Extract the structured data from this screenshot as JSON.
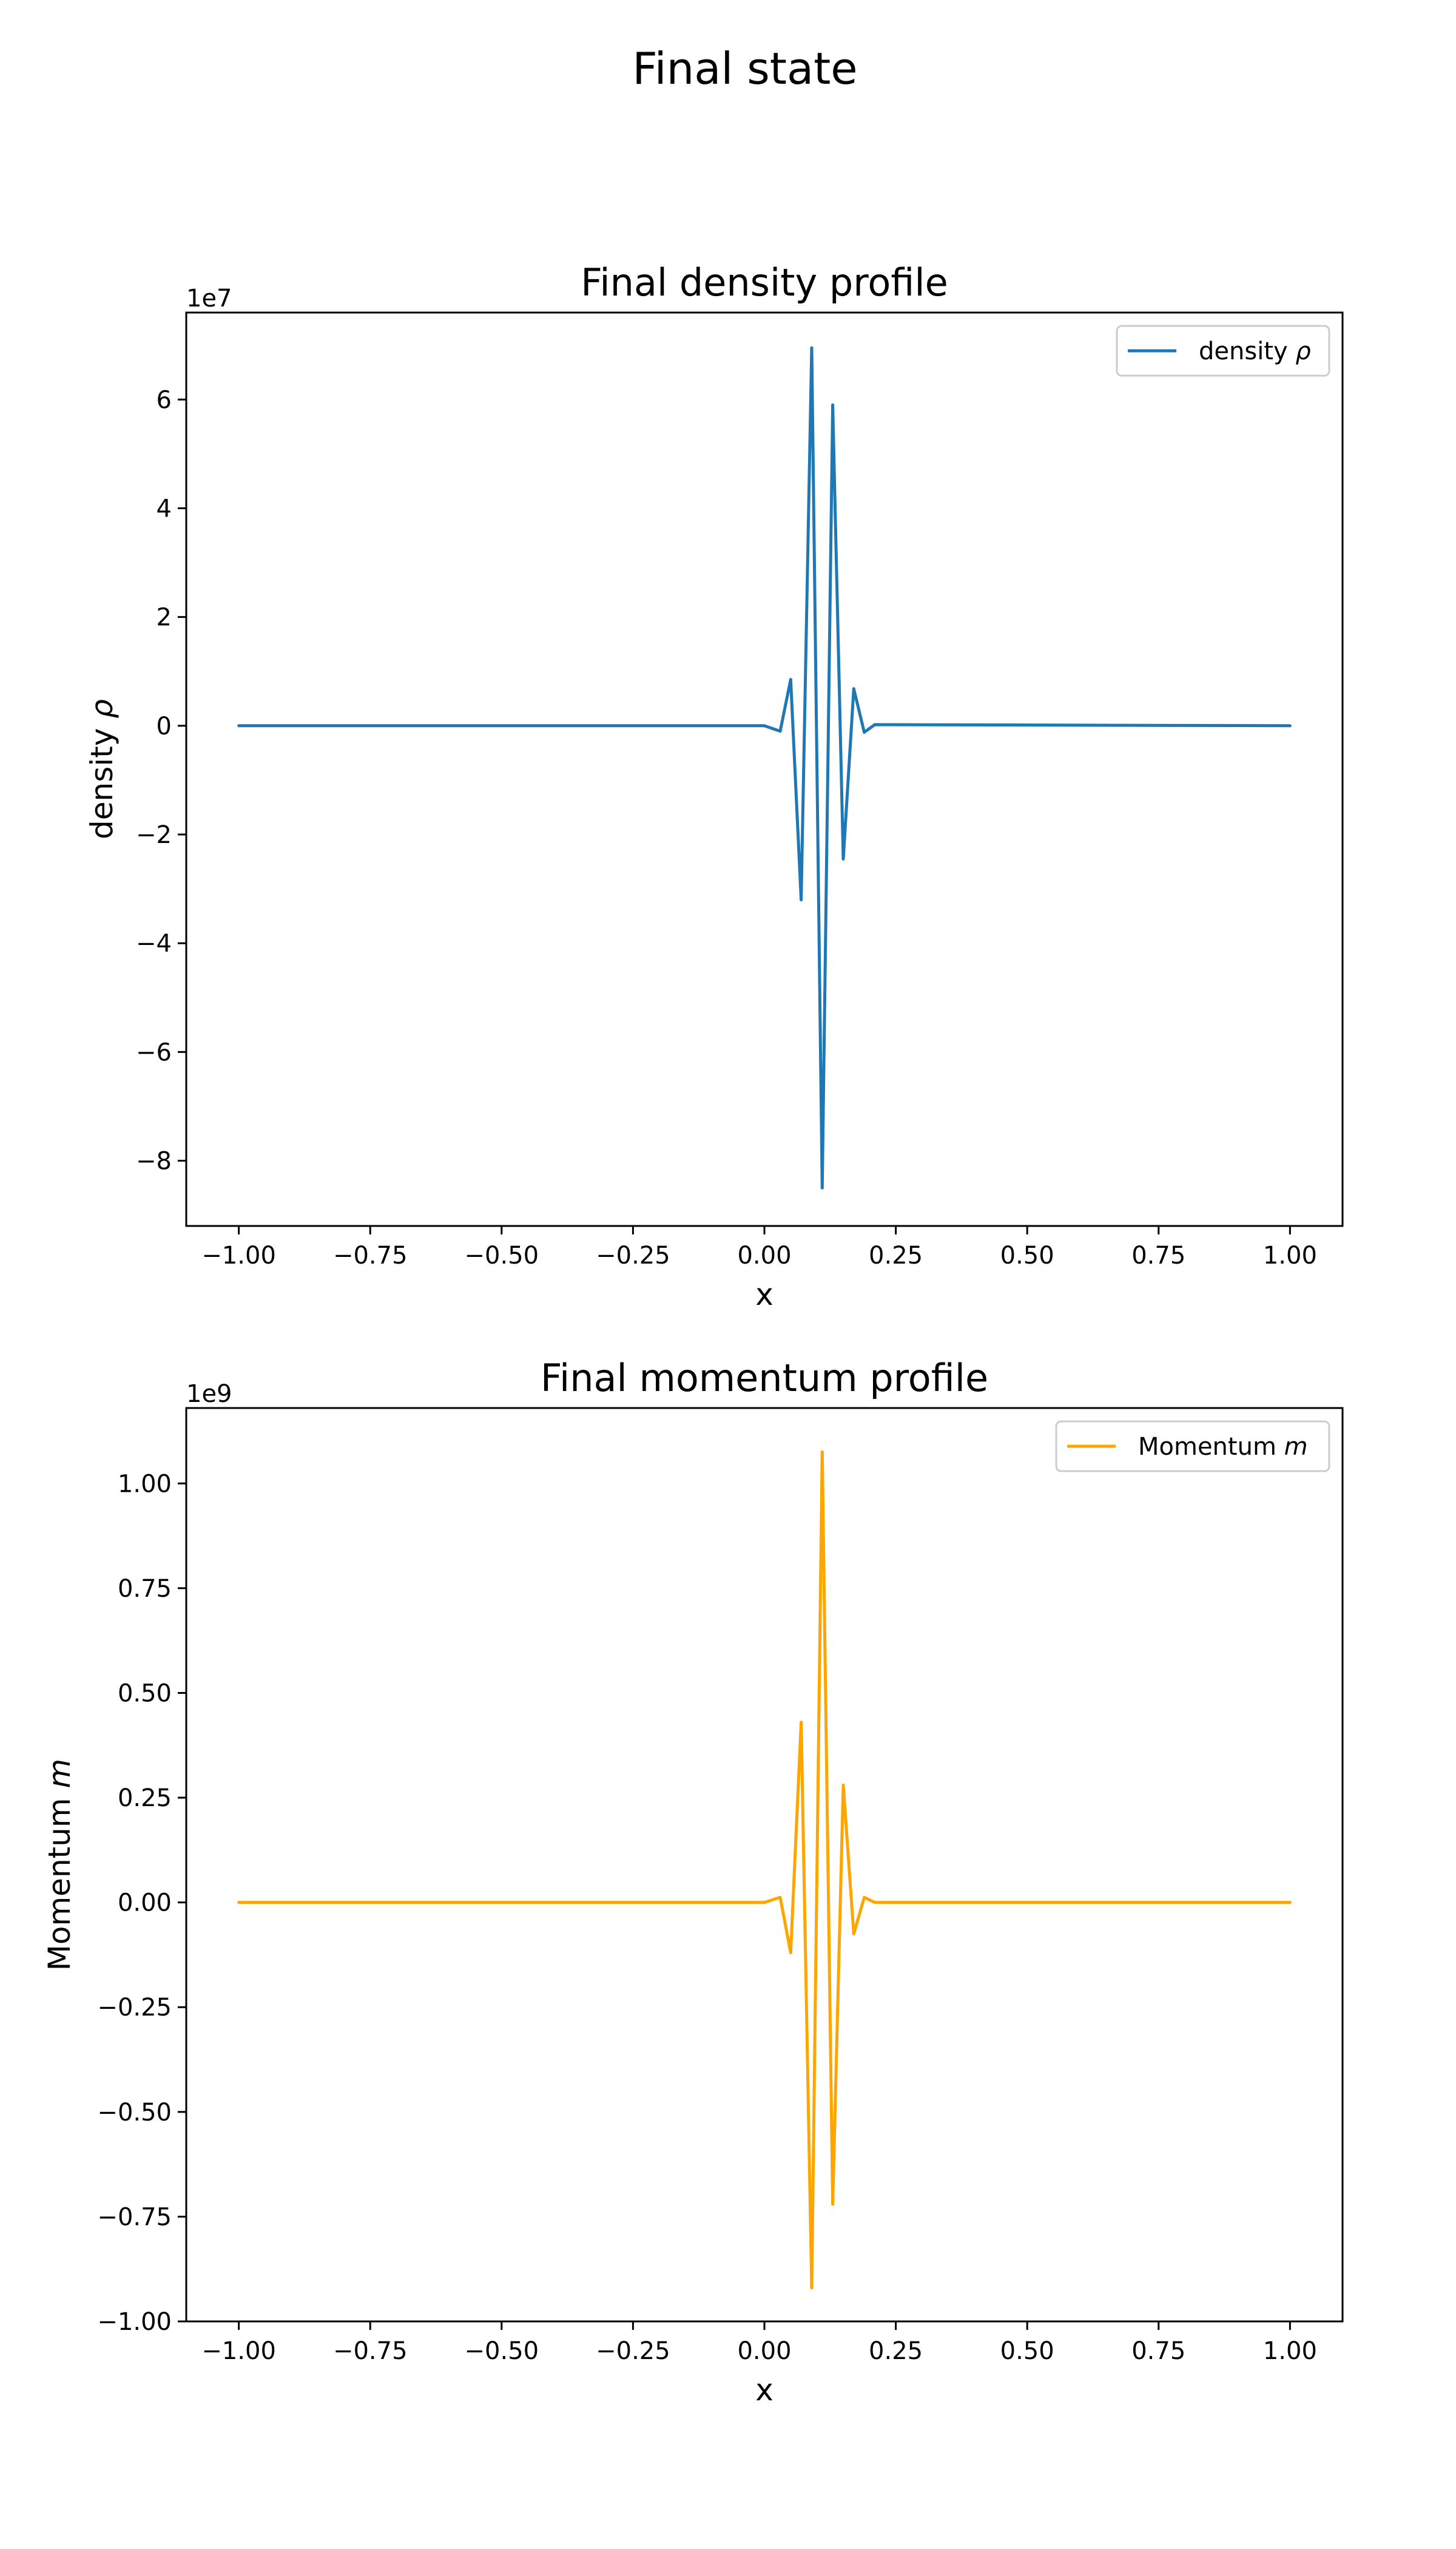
{
  "figure": {
    "suptitle": "Final state"
  },
  "chart_data": [
    {
      "type": "line",
      "title": "Final density profile",
      "xlabel": "x",
      "ylabel_text": "density ",
      "ylabel_symbol": "ρ",
      "offset_text": "1e7",
      "xlim": [
        -1.1,
        1.1
      ],
      "ylim": [
        -9.2,
        7.6
      ],
      "xticks": [
        -1.0,
        -0.75,
        -0.5,
        -0.25,
        0.0,
        0.25,
        0.5,
        0.75,
        1.0
      ],
      "xtick_labels": [
        "−1.00",
        "−0.75",
        "−0.50",
        "−0.25",
        "0.00",
        "0.25",
        "0.50",
        "0.75",
        "1.00"
      ],
      "yticks": [
        -8,
        -6,
        -4,
        -2,
        0,
        2,
        4,
        6
      ],
      "ytick_labels": [
        "−8",
        "−6",
        "−4",
        "−2",
        "0",
        "2",
        "4",
        "6"
      ],
      "grid": false,
      "legend_position": "top-right",
      "series": [
        {
          "name_text": "density ",
          "name_symbol": "ρ",
          "color": "#1f77b4",
          "x": [
            -1.0,
            0.0,
            0.03,
            0.05,
            0.07,
            0.09,
            0.11,
            0.13,
            0.15,
            0.17,
            0.19,
            0.21,
            1.0
          ],
          "y": [
            0.0,
            0.0,
            -0.1,
            0.85,
            -3.2,
            6.95,
            -8.5,
            5.9,
            -2.45,
            0.68,
            -0.12,
            0.02,
            0.0
          ]
        }
      ]
    },
    {
      "type": "line",
      "title": "Final momentum profile",
      "xlabel": "x",
      "ylabel_text": "Momentum ",
      "ylabel_symbol": "m",
      "offset_text": "1e9",
      "xlim": [
        -1.1,
        1.1
      ],
      "ylim": [
        -1.0,
        1.18
      ],
      "xticks": [
        -1.0,
        -0.75,
        -0.5,
        -0.25,
        0.0,
        0.25,
        0.5,
        0.75,
        1.0
      ],
      "xtick_labels": [
        "−1.00",
        "−0.75",
        "−0.50",
        "−0.25",
        "0.00",
        "0.25",
        "0.50",
        "0.75",
        "1.00"
      ],
      "yticks": [
        -1.0,
        -0.75,
        -0.5,
        -0.25,
        0.0,
        0.25,
        0.5,
        0.75,
        1.0
      ],
      "ytick_labels": [
        "−1.00",
        "−0.75",
        "−0.50",
        "−0.25",
        "0.00",
        "0.25",
        "0.50",
        "0.75",
        "1.00"
      ],
      "grid": false,
      "legend_position": "top-right",
      "series": [
        {
          "name_text": "Momentum ",
          "name_symbol": "m",
          "color": "#ffa500",
          "x": [
            -1.0,
            0.0,
            0.03,
            0.05,
            0.07,
            0.09,
            0.11,
            0.13,
            0.15,
            0.17,
            0.19,
            0.21,
            1.0
          ],
          "y": [
            0.0,
            0.0,
            0.012,
            -0.12,
            0.43,
            -0.92,
            1.075,
            -0.72,
            0.28,
            -0.075,
            0.012,
            0.0,
            0.0
          ]
        }
      ]
    }
  ]
}
